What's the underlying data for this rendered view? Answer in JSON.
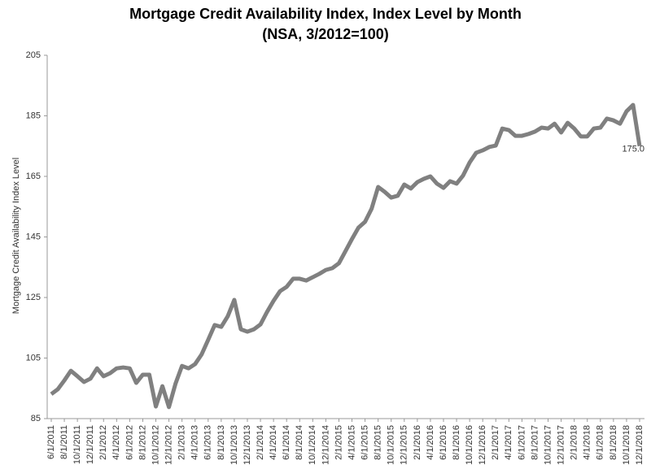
{
  "chart_data": {
    "type": "line",
    "title": "Mortgage Credit Availability Index, Index Level by Month",
    "subtitle": "(NSA, 3/2012=100)",
    "y_label": "Mortgage Credit Availability Index Level",
    "categories": [
      "6/1/2011",
      null,
      "8/1/2011",
      null,
      "10/1/2011",
      null,
      "12/1/2011",
      null,
      "2/1/2012",
      null,
      "4/1/2012",
      null,
      "6/1/2012",
      null,
      "8/1/2012",
      null,
      "10/1/2012",
      null,
      "12/1/2012",
      null,
      "2/1/2013",
      null,
      "4/1/2013",
      null,
      "6/1/2013",
      null,
      "8/1/2013",
      null,
      "10/1/2013",
      null,
      "12/1/2013",
      null,
      "2/1/2014",
      null,
      "4/1/2014",
      null,
      "6/1/2014",
      null,
      "8/1/2014",
      null,
      "10/1/2014",
      null,
      "12/1/2014",
      null,
      "2/1/2015",
      null,
      "4/1/2015",
      null,
      "6/1/2015",
      null,
      "8/1/2015",
      null,
      "10/1/2015",
      null,
      "12/1/2015",
      null,
      "2/1/2016",
      null,
      "4/1/2016",
      null,
      "6/1/2016",
      null,
      "8/1/2016",
      null,
      "10/1/2016",
      null,
      "12/1/2016",
      null,
      "2/1/2017",
      null,
      "4/1/2017",
      null,
      "6/1/2017",
      null,
      "8/1/2017",
      null,
      "10/1/2017",
      null,
      "12/1/2017",
      null,
      "2/1/2018",
      null,
      "4/1/2018",
      null,
      "6/1/2018",
      null,
      "8/1/2018",
      null,
      "10/1/2018",
      null,
      "12/1/2018"
    ],
    "values": [
      93.1,
      94.7,
      97.6,
      100.8,
      99,
      97.1,
      98.2,
      101.6,
      99,
      100,
      101.6,
      101.9,
      101.6,
      96.8,
      99.5,
      99.5,
      89,
      95.7,
      88.8,
      96.5,
      102.4,
      101.6,
      103,
      106.2,
      111,
      115.9,
      115.3,
      118.8,
      124.2,
      114.5,
      113.7,
      114.5,
      116.1,
      120.2,
      123.9,
      127.1,
      128.5,
      131.2,
      131.2,
      130.6,
      131.7,
      132.8,
      134.1,
      134.7,
      136.3,
      140.3,
      144.3,
      148.1,
      150,
      154.3,
      161.5,
      159.9,
      158,
      158.6,
      162.3,
      161,
      163.1,
      164.2,
      165,
      162.6,
      161.2,
      163.4,
      162.6,
      165.3,
      169.6,
      172.8,
      173.6,
      174.7,
      175.2,
      180.8,
      180.3,
      178.4,
      178.4,
      179,
      179.8,
      181.1,
      180.8,
      182.4,
      179.5,
      182.7,
      180.8,
      178.2,
      178.2,
      180.8,
      181.1,
      184.1,
      183.5,
      182.4,
      186.5,
      188.6,
      175
    ],
    "value_labels": [
      null,
      null,
      null,
      null,
      null,
      null,
      null,
      null,
      null,
      null,
      null,
      null,
      null,
      null,
      null,
      null,
      null,
      null,
      null,
      null,
      null,
      null,
      null,
      null,
      null,
      null,
      null,
      null,
      null,
      null,
      null,
      null,
      null,
      null,
      null,
      null,
      null,
      null,
      null,
      null,
      null,
      null,
      null,
      null,
      null,
      null,
      null,
      null,
      null,
      null,
      null,
      null,
      null,
      null,
      null,
      null,
      null,
      null,
      null,
      null,
      null,
      null,
      null,
      null,
      null,
      null,
      null,
      null,
      null,
      null,
      null,
      null,
      null,
      null,
      null,
      null,
      null,
      null,
      null,
      null,
      null,
      null,
      null,
      null,
      null,
      null,
      null,
      null,
      null,
      null,
      "175.0"
    ],
    "color": "#808080",
    "ylim": [
      85,
      205
    ],
    "yticks": [
      85,
      105,
      125,
      145,
      165,
      185,
      205
    ],
    "grid": false
  }
}
